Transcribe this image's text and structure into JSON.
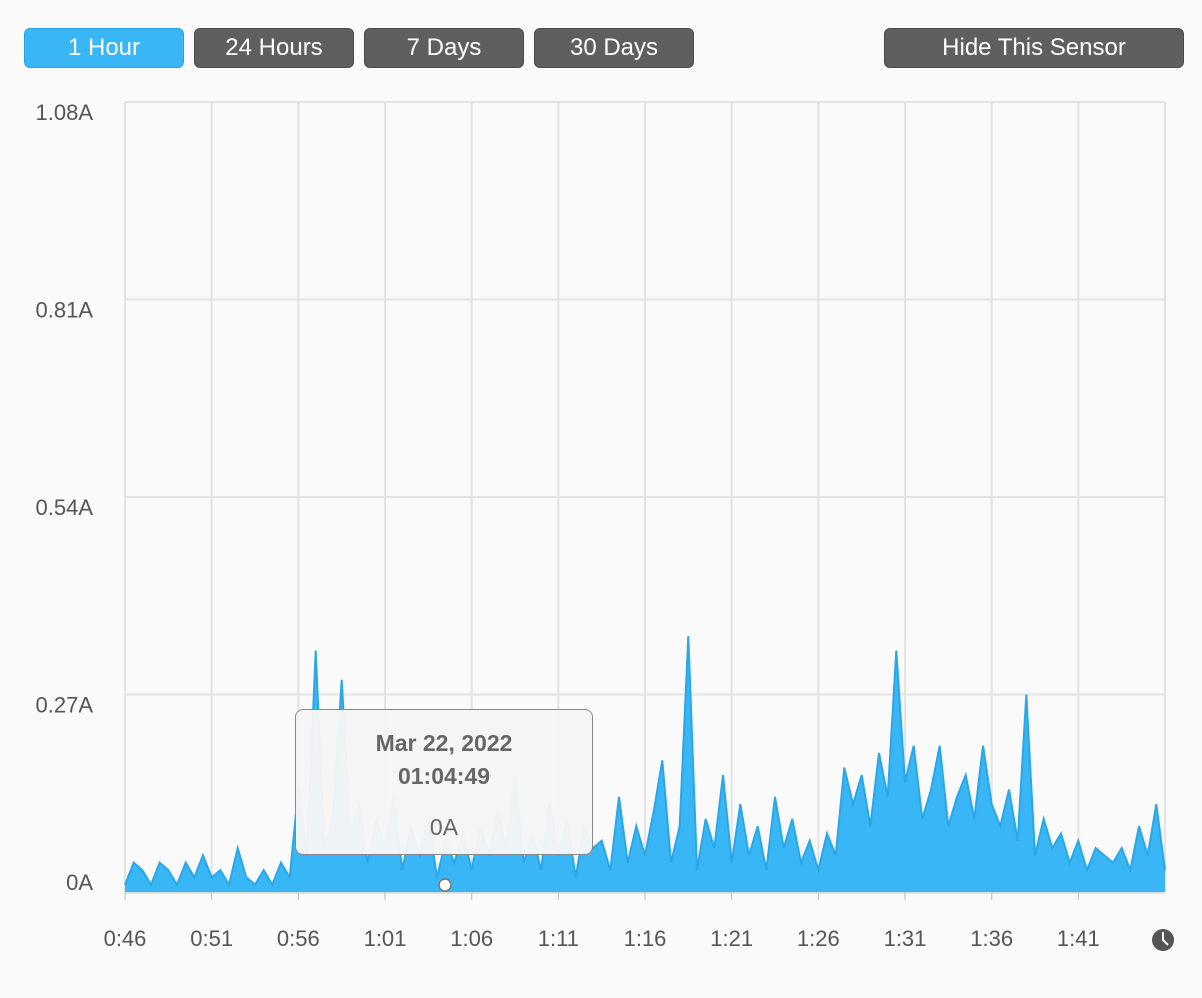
{
  "buttons": [
    "1 Hour",
    "24 Hours",
    "7 Days",
    "30 Days"
  ],
  "hide_button": "Hide This Sensor",
  "tooltip": {
    "date": "Mar 22, 2022",
    "time": "01:04:49",
    "value": "0A"
  },
  "chart_data": {
    "type": "area",
    "color": "#38b6f5",
    "line_color": "#2ba6e6",
    "grid": true,
    "xlim": [
      46,
      106
    ],
    "xticks": [
      {
        "value": 46,
        "label": "0:46"
      },
      {
        "value": 51,
        "label": "0:51"
      },
      {
        "value": 56,
        "label": "0:56"
      },
      {
        "value": 61,
        "label": "1:01"
      },
      {
        "value": 66,
        "label": "1:06"
      },
      {
        "value": 71,
        "label": "1:11"
      },
      {
        "value": 76,
        "label": "1:16"
      },
      {
        "value": 81,
        "label": "1:21"
      },
      {
        "value": 86,
        "label": "1:26"
      },
      {
        "value": 91,
        "label": "1:31"
      },
      {
        "value": 96,
        "label": "1:36"
      },
      {
        "value": 101,
        "label": "1:41"
      }
    ],
    "ylim": [
      0,
      1.08
    ],
    "yticks": [
      {
        "value": 0,
        "label": "0A"
      },
      {
        "value": 0.27,
        "label": "0.27A"
      },
      {
        "value": 0.54,
        "label": "0.54A"
      },
      {
        "value": 0.81,
        "label": "0.81A"
      },
      {
        "value": 1.08,
        "label": "1.08A"
      }
    ],
    "x": [
      46,
      46.5,
      47,
      47.5,
      48,
      48.5,
      49,
      49.5,
      50,
      50.5,
      51,
      51.5,
      52,
      52.5,
      53,
      53.5,
      54,
      54.5,
      55,
      55.5,
      56,
      56.5,
      57,
      57.5,
      58,
      58.5,
      59,
      59.5,
      60,
      60.5,
      61,
      61.5,
      62,
      62.5,
      63,
      63.5,
      64,
      64.5,
      65,
      65.5,
      66,
      66.5,
      67,
      67.5,
      68,
      68.5,
      69,
      69.5,
      70,
      70.5,
      71,
      71.5,
      72,
      72.5,
      73,
      73.5,
      74,
      74.5,
      75,
      75.5,
      76,
      76.5,
      77,
      77.5,
      78,
      78.5,
      79,
      79.5,
      80,
      80.5,
      81,
      81.5,
      82,
      82.5,
      83,
      83.5,
      84,
      84.5,
      85,
      85.5,
      86,
      86.5,
      87,
      87.5,
      88,
      88.5,
      89,
      89.5,
      90,
      90.5,
      91,
      91.5,
      92,
      92.5,
      93,
      93.5,
      94,
      94.5,
      95,
      95.5,
      96,
      96.5,
      97,
      97.5,
      98,
      98.5,
      99,
      99.5,
      100,
      100.5,
      101,
      101.5,
      102,
      102.5,
      103,
      103.5,
      104,
      104.5,
      105,
      105.5,
      106
    ],
    "values": [
      0.01,
      0.04,
      0.03,
      0.01,
      0.04,
      0.03,
      0.01,
      0.04,
      0.02,
      0.05,
      0.02,
      0.03,
      0.01,
      0.06,
      0.02,
      0.01,
      0.03,
      0.01,
      0.04,
      0.02,
      0.14,
      0.05,
      0.33,
      0.06,
      0.1,
      0.29,
      0.08,
      0.12,
      0.04,
      0.1,
      0.06,
      0.13,
      0.03,
      0.09,
      0.05,
      0.1,
      0.02,
      0.07,
      0.04,
      0.08,
      0.03,
      0.09,
      0.05,
      0.11,
      0.06,
      0.16,
      0.04,
      0.08,
      0.03,
      0.12,
      0.05,
      0.1,
      0.02,
      0.09,
      0.06,
      0.07,
      0.03,
      0.13,
      0.04,
      0.09,
      0.05,
      0.11,
      0.18,
      0.04,
      0.09,
      0.35,
      0.03,
      0.1,
      0.06,
      0.16,
      0.04,
      0.12,
      0.05,
      0.09,
      0.03,
      0.13,
      0.06,
      0.1,
      0.04,
      0.07,
      0.03,
      0.08,
      0.05,
      0.17,
      0.12,
      0.16,
      0.09,
      0.19,
      0.13,
      0.33,
      0.15,
      0.2,
      0.1,
      0.14,
      0.2,
      0.09,
      0.13,
      0.16,
      0.1,
      0.2,
      0.12,
      0.09,
      0.14,
      0.07,
      0.27,
      0.05,
      0.1,
      0.06,
      0.08,
      0.04,
      0.07,
      0.03,
      0.06,
      0.05,
      0.04,
      0.06,
      0.03,
      0.09,
      0.05,
      0.12,
      0.03
    ]
  }
}
